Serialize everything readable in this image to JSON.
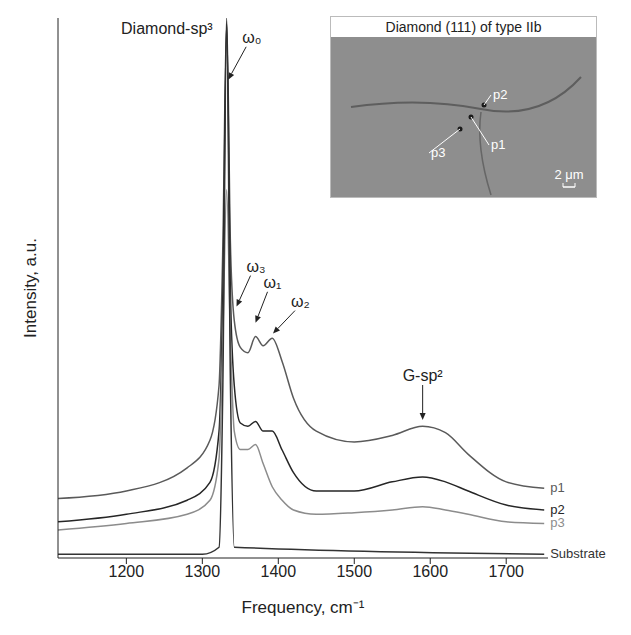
{
  "chart_data": {
    "type": "line",
    "x_label": "Frequency, cm⁻¹",
    "y_label": "Intensity, a.u.",
    "xlim": [
      1110,
      1755
    ],
    "xticks": [
      1200,
      1300,
      1400,
      1500,
      1600,
      1700
    ],
    "ylim": [
      0,
      100
    ],
    "tick_labels": "x",
    "series": [
      {
        "name": "p1",
        "color": "#5a5a5a",
        "x": [
          1110,
          1200,
          1280,
          1310,
          1322,
          1327,
          1332,
          1337,
          1342,
          1350,
          1360,
          1370,
          1380,
          1392,
          1405,
          1420,
          1450,
          1500,
          1550,
          1590,
          1620,
          1650,
          1700,
          1750
        ],
        "values": [
          11.0,
          12.4,
          16.7,
          21.8,
          32,
          58,
          100,
          58,
          44,
          39,
          38,
          41,
          39.3,
          40.7,
          36.4,
          29.6,
          23.5,
          21.5,
          22.7,
          24.4,
          23.2,
          19.2,
          14.1,
          12.9
        ]
      },
      {
        "name": "p2",
        "color": "#262626",
        "x": [
          1110,
          1200,
          1280,
          1310,
          1322,
          1327,
          1332,
          1337,
          1342,
          1350,
          1360,
          1370,
          1380,
          1392,
          1405,
          1420,
          1450,
          1500,
          1550,
          1590,
          1620,
          1650,
          1700,
          1750
        ],
        "values": [
          6.7,
          8.1,
          10.7,
          14,
          23.5,
          49,
          99,
          49,
          32,
          25,
          24.4,
          25.3,
          23.5,
          23.5,
          20,
          15.8,
          12.4,
          12.4,
          14.1,
          15,
          14.1,
          12.4,
          9.8,
          8.9
        ]
      },
      {
        "name": "p3",
        "color": "#8c8c8c",
        "x": [
          1110,
          1200,
          1280,
          1310,
          1322,
          1327,
          1332,
          1337,
          1342,
          1350,
          1360,
          1370,
          1380,
          1392,
          1405,
          1420,
          1450,
          1500,
          1550,
          1590,
          1620,
          1650,
          1700,
          1750
        ],
        "values": [
          5.2,
          6.4,
          8.1,
          10.7,
          18.4,
          40.7,
          68.2,
          40.7,
          23.5,
          20.1,
          20.1,
          21,
          17.5,
          13.2,
          10.7,
          8.9,
          8.1,
          8.4,
          8.9,
          9.5,
          8.9,
          8.1,
          6.7,
          6.4
        ]
      },
      {
        "name": "Substrate",
        "color": "#333333",
        "x": [
          1110,
          1300,
          1322,
          1327,
          1332,
          1337,
          1342,
          1750
        ],
        "values": [
          0.7,
          0.7,
          2,
          32,
          99.5,
          32,
          2,
          0.7
        ]
      }
    ],
    "annotations": [
      {
        "text": "Diamond-sp³",
        "x": 1332,
        "y": 100
      },
      {
        "text": "ω₀",
        "x": 1334,
        "y": 88
      },
      {
        "text": "ω₃",
        "x": 1345,
        "y": 46
      },
      {
        "text": "ω₁",
        "x": 1370,
        "y": 43
      },
      {
        "text": "ω₂",
        "x": 1393,
        "y": 41
      },
      {
        "text": "G-sp²",
        "x": 1590,
        "y": 25
      }
    ],
    "inset": {
      "title": "Diamond (111) of type IIb",
      "points": [
        "p1",
        "p2",
        "p3"
      ],
      "scale_bar": "2 μm"
    }
  }
}
